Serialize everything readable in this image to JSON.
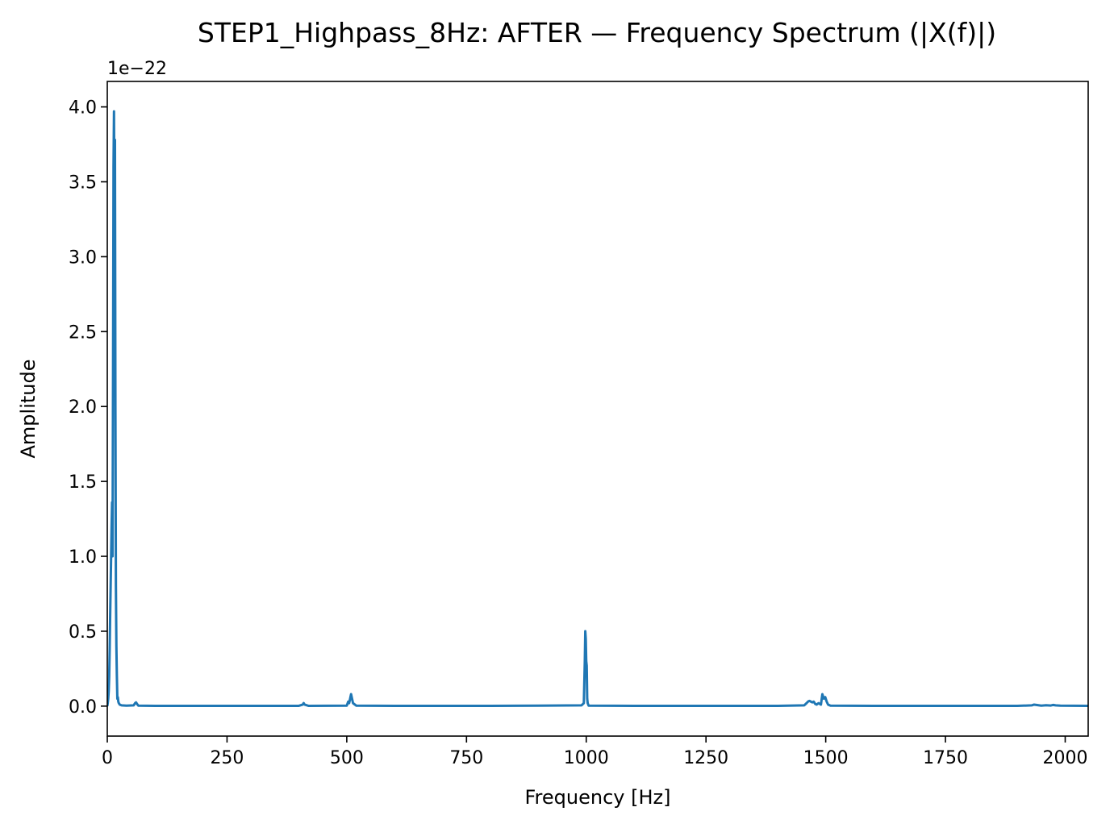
{
  "chart_data": {
    "type": "line",
    "title": "STEP1_Highpass_8Hz: AFTER — Frequency Spectrum (|X(f)|)",
    "xlabel": "Frequency [Hz]",
    "ylabel": "Amplitude",
    "y_offset_label": "1e−22",
    "xlim": [
      0,
      2048
    ],
    "ylim": [
      -0.2,
      4.17
    ],
    "y_scale": "×1e-22",
    "grid": false,
    "line_color": "#1f77b4",
    "x_ticks": [
      0,
      250,
      500,
      750,
      1000,
      1250,
      1500,
      1750,
      2000
    ],
    "x_tick_labels": [
      "0",
      "250",
      "500",
      "750",
      "1000",
      "1250",
      "1500",
      "1750",
      "2000"
    ],
    "y_ticks": [
      0.0,
      0.5,
      1.0,
      1.5,
      2.0,
      2.5,
      3.0,
      3.5,
      4.0
    ],
    "y_tick_labels": [
      "0.0",
      "0.5",
      "1.0",
      "1.5",
      "2.0",
      "2.5",
      "3.0",
      "3.5",
      "4.0"
    ],
    "series": [
      {
        "x": [
          0,
          1,
          2,
          3,
          4,
          5,
          6,
          7,
          8,
          9,
          10,
          11,
          12,
          13,
          14,
          15,
          16,
          17,
          18,
          19,
          20,
          21,
          22,
          23,
          24,
          26,
          30,
          40,
          55,
          58,
          60,
          62,
          65,
          100,
          200,
          300,
          400,
          408,
          410,
          412,
          420,
          500,
          503,
          505,
          507,
          509,
          511,
          513,
          520,
          600,
          700,
          800,
          900,
          990,
          995,
          997,
          998,
          999,
          1000,
          1001,
          1002,
          1003,
          1005,
          1100,
          1200,
          1300,
          1400,
          1455,
          1460,
          1463,
          1466,
          1469,
          1472,
          1475,
          1478,
          1481,
          1485,
          1490,
          1493,
          1496,
          1499,
          1502,
          1505,
          1510,
          1600,
          1700,
          1800,
          1900,
          1930,
          1935,
          1940,
          1950,
          1960,
          1970,
          1975,
          1980,
          1990,
          2048
        ],
        "y": [
          0.0,
          0.02,
          0.05,
          0.1,
          0.2,
          0.38,
          0.6,
          0.8,
          1.0,
          1.2,
          1.36,
          1.0,
          2.2,
          3.6,
          3.97,
          3.3,
          3.78,
          2.0,
          0.8,
          0.4,
          0.2,
          0.05,
          0.06,
          0.03,
          0.02,
          0.01,
          0.005,
          0.003,
          0.005,
          0.02,
          0.025,
          0.015,
          0.003,
          0.002,
          0.002,
          0.002,
          0.002,
          0.01,
          0.02,
          0.01,
          0.002,
          0.003,
          0.03,
          0.02,
          0.05,
          0.08,
          0.05,
          0.02,
          0.003,
          0.002,
          0.002,
          0.002,
          0.003,
          0.005,
          0.02,
          0.3,
          0.5,
          0.45,
          0.3,
          0.27,
          0.05,
          0.02,
          0.003,
          0.002,
          0.002,
          0.002,
          0.002,
          0.005,
          0.02,
          0.03,
          0.035,
          0.03,
          0.025,
          0.03,
          0.015,
          0.01,
          0.02,
          0.01,
          0.08,
          0.05,
          0.06,
          0.03,
          0.01,
          0.003,
          0.002,
          0.002,
          0.002,
          0.002,
          0.005,
          0.01,
          0.008,
          0.003,
          0.006,
          0.004,
          0.008,
          0.005,
          0.003,
          0.002
        ]
      }
    ]
  }
}
